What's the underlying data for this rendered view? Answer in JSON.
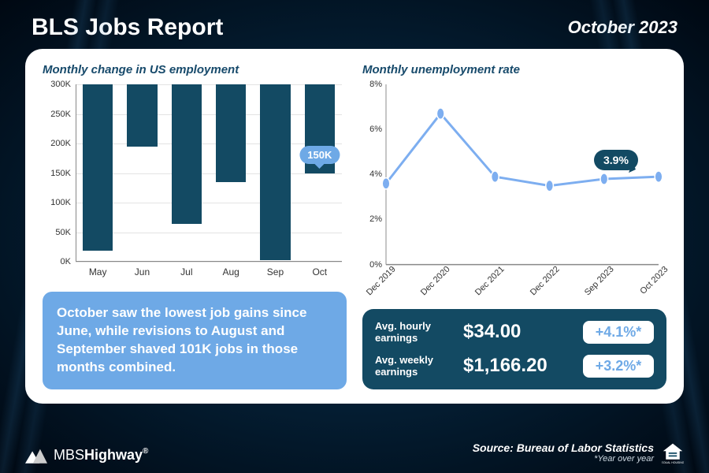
{
  "header": {
    "title": "BLS Jobs Report",
    "date": "October 2023"
  },
  "colors": {
    "dark_teal": "#134a63",
    "light_blue": "#6ea9e6",
    "line_blue": "#7daef0",
    "grid": "#e3e3e3",
    "axis": "#888888",
    "panel_bg": "#ffffff"
  },
  "bar_chart": {
    "title": "Monthly change in US employment",
    "categories": [
      "May",
      "Jun",
      "Jul",
      "Aug",
      "Sep",
      "Oct"
    ],
    "values": [
      281,
      105,
      236,
      165,
      297,
      150
    ],
    "ylim": [
      0,
      300
    ],
    "ytick_step": 50,
    "ytick_labels": [
      "0K",
      "50K",
      "100K",
      "150K",
      "200K",
      "250K",
      "300K"
    ],
    "bar_color": "#134a63",
    "callout": {
      "index": 5,
      "label": "150K",
      "bg": "#6ea9e6"
    }
  },
  "summary": {
    "text": "October saw the lowest job gains since June, while revisions to August and September shaved 101K jobs in those months combined.",
    "bg": "#6ea9e6"
  },
  "line_chart": {
    "title": "Monthly unemployment rate",
    "x_labels": [
      "Dec 2019",
      "Dec 2020",
      "Dec 2021",
      "Dec 2022",
      "Sep 2023",
      "Oct 2023"
    ],
    "values": [
      3.6,
      6.7,
      3.9,
      3.5,
      3.8,
      3.9
    ],
    "ylim": [
      0,
      8
    ],
    "ytick_step": 2,
    "ytick_labels": [
      "0%",
      "2%",
      "4%",
      "6%",
      "8%"
    ],
    "line_color": "#7daef0",
    "line_width": 3,
    "marker_color": "#7daef0",
    "marker_radius": 5,
    "callout": {
      "index": 5,
      "label": "3.9%",
      "bg": "#134a63"
    }
  },
  "earnings": {
    "bg": "#134a63",
    "rows": [
      {
        "label": "Avg. hourly earnings",
        "value": "$34.00",
        "pct": "+4.1%*"
      },
      {
        "label": "Avg. weekly earnings",
        "value": "$1,166.20",
        "pct": "+3.2%*"
      }
    ],
    "pct_bg": "#ffffff",
    "pct_color": "#6ea9e6"
  },
  "footer": {
    "brand": "MBSHighway",
    "brand_suffix": "®",
    "source": "Source: Bureau of Labor Statistics",
    "note": "*Year over year"
  }
}
